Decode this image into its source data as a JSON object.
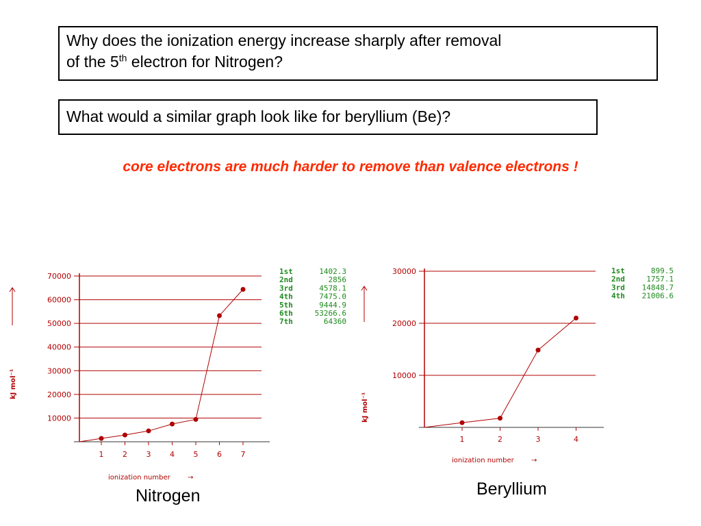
{
  "question1": {
    "line1": "Why does the ionization energy increase sharply after removal",
    "line2_pre": "of the 5",
    "line2_sup": "th",
    "line2_post": " electron for Nitrogen?"
  },
  "question2": "What would a similar graph look like for beryllium (Be)?",
  "answer": "core electrons are much harder to remove than valence electrons !",
  "colors": {
    "axis": "#b00000",
    "legend": "#1e8a1e",
    "answer": "#ff2a00"
  },
  "chart_data": [
    {
      "type": "line",
      "caption": "Nitrogen",
      "xlabel": "ionization number",
      "xlabel_arrow": "→",
      "ylabel": "kJ mol⁻¹",
      "x": [
        1,
        2,
        3,
        4,
        5,
        6,
        7
      ],
      "xticks": [
        "1",
        "2",
        "3",
        "4",
        "5",
        "6",
        "7"
      ],
      "y": [
        1402.3,
        2856,
        4578.1,
        7475.0,
        9444.9,
        53266.6,
        64360
      ],
      "yticks": [
        10000,
        20000,
        30000,
        40000,
        50000,
        60000,
        70000
      ],
      "ylim": [
        0,
        70000
      ],
      "grid": true,
      "legend": [
        {
          "label": "1st",
          "value": "1402.3"
        },
        {
          "label": "2nd",
          "value": "2856"
        },
        {
          "label": "3rd",
          "value": "4578.1"
        },
        {
          "label": "4th",
          "value": "7475.0"
        },
        {
          "label": "5th",
          "value": "9444.9"
        },
        {
          "label": "6th",
          "value": "53266.6"
        },
        {
          "label": "7th",
          "value": "64360"
        }
      ]
    },
    {
      "type": "line",
      "caption": "Beryllium",
      "xlabel": "ionization number",
      "xlabel_arrow": "→",
      "ylabel": "kJ mol⁻¹",
      "x": [
        1,
        2,
        3,
        4
      ],
      "xticks": [
        "1",
        "2",
        "3",
        "4"
      ],
      "y": [
        899.5,
        1757.1,
        14848.7,
        21006.6
      ],
      "yticks": [
        10000,
        20000,
        30000
      ],
      "ylim": [
        0,
        30000
      ],
      "grid": true,
      "legend": [
        {
          "label": "1st",
          "value": "899.5"
        },
        {
          "label": "2nd",
          "value": "1757.1"
        },
        {
          "label": "3rd",
          "value": "14848.7"
        },
        {
          "label": "4th",
          "value": "21006.6"
        }
      ]
    }
  ]
}
